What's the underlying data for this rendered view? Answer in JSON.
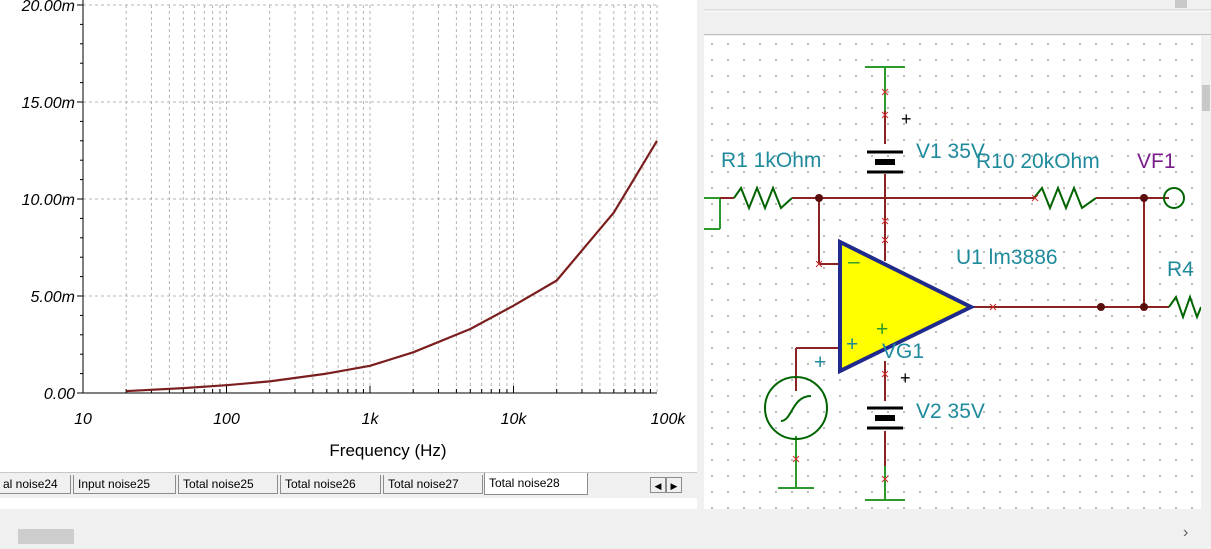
{
  "chart_data": {
    "type": "line",
    "xscale": "log",
    "xlim": [
      10,
      100000
    ],
    "ylim": [
      0,
      0.02
    ],
    "y_ticks": [
      "0.00",
      "5.00m",
      "10.00m",
      "15.00m",
      "20.00m"
    ],
    "y_tick_values": [
      0,
      0.005,
      0.01,
      0.015,
      0.02
    ],
    "x_ticks": [
      "10",
      "100",
      "1k",
      "10k",
      "100k"
    ],
    "x_tick_values": [
      10,
      100,
      1000,
      10000,
      100000
    ],
    "xlabel": "Frequency (Hz)",
    "ylabel": "",
    "grid": true,
    "series": [
      {
        "color": "#7b1e1e",
        "x": [
          20,
          50,
          100,
          200,
          500,
          1000,
          2000,
          5000,
          10000,
          20000,
          50000,
          100000
        ],
        "y": [
          0.0001,
          0.00025,
          0.0004,
          0.0006,
          0.001,
          0.0014,
          0.0021,
          0.0033,
          0.0045,
          0.0058,
          0.0093,
          0.013
        ]
      }
    ]
  },
  "tabs": {
    "items": [
      "al noise24",
      "Input noise25",
      "Total noise25",
      "Total noise26",
      "Total noise27",
      "Total noise28"
    ],
    "active": "Total noise28",
    "prev_label": "◀",
    "next_label": "▶"
  },
  "schematic": {
    "r1": "R1 1kOhm",
    "v1": "V1 35V",
    "r10": "R10 20kOhm",
    "vf1": "VF1",
    "u1": "U1 lm3886",
    "r4": "R4",
    "vg1": "VG1",
    "v2": "V2 35V",
    "plus1": "+",
    "plus2": "+",
    "plus3": "+",
    "opamp_plus": "+",
    "opamp_minus": "–",
    "wire_color": "#8b2323",
    "label_color": "#1e8a9c",
    "vf_color": "#7a1f8a",
    "ground_color": "#2b9a2b",
    "opamp_fill": "#ffff00",
    "opamp_stroke": "#1f2a8a"
  },
  "scrollbar": {
    "right_arrow": "›"
  }
}
